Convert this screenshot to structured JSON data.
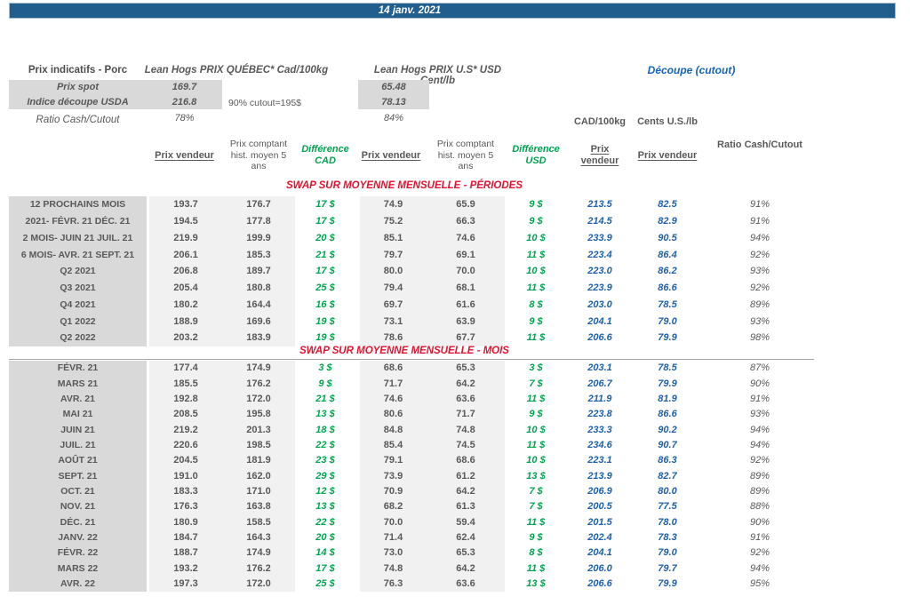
{
  "banner": {
    "date": "14 janv. 2021"
  },
  "header": {
    "title": "Prix indicatifs - Porc",
    "quebec_title": "Lean Hogs PRIX QUÉBEC* Cad/100kg",
    "us_title": "Lean Hogs PRIX U.S* USD Cent/lb",
    "cutout_title": "Découpe (cutout)",
    "spot_label": "Prix spot",
    "spot_cad": "169.7",
    "spot_usd": "65.48",
    "usda_label": "Indice découpe USDA",
    "usda_cad": "216.8",
    "usda_usd": "78.13",
    "cutout_note": "90% cutout=195$",
    "ratio_label": "Ratio Cash/Cutout",
    "ratio_cad": "78%",
    "ratio_usd": "84%",
    "unit_cad": "CAD/100kg",
    "unit_usd": "Cents U.S./lb",
    "ratio_right_label": "Ratio Cash/Cutout"
  },
  "columns": {
    "prix_vendeur": "Prix vendeur",
    "prix_comptant": "Prix comptant hist. moyen 5 ans",
    "difference_cad": "Différence CAD",
    "difference_usd": "Différence USD"
  },
  "colors": {
    "banner_blue": "#215E8E",
    "cutout_blue": "#1663C0",
    "value_blue": "#2061A9",
    "positive_green": "#00A550",
    "section_red": "#E8112D",
    "text_gray": "#595959",
    "label_bg": "#D9D9D9",
    "cell_bg": "#F1F1F1"
  },
  "sections": [
    {
      "title": "SWAP SUR MOYENNE MENSUELLE - PÉRIODES",
      "rows": [
        [
          "12 PROCHAINS MOIS",
          "193.7",
          "176.7",
          "17 $",
          "74.9",
          "65.9",
          "9 $",
          "213.5",
          "82.5",
          "91%"
        ],
        [
          "2021- FÉVR. 21 DÉC. 21",
          "194.5",
          "177.8",
          "17 $",
          "75.2",
          "66.3",
          "9 $",
          "214.5",
          "82.9",
          "91%"
        ],
        [
          "2 MOIS- JUIN 21 JUIL. 21",
          "219.9",
          "199.9",
          "20 $",
          "85.1",
          "74.6",
          "10 $",
          "233.9",
          "90.5",
          "94%"
        ],
        [
          "6 MOIS- AVR. 21 SEPT. 21",
          "206.1",
          "185.3",
          "21 $",
          "79.7",
          "69.1",
          "11 $",
          "223.4",
          "86.4",
          "92%"
        ],
        [
          "Q2 2021",
          "206.8",
          "189.7",
          "17 $",
          "80.0",
          "70.0",
          "10 $",
          "223.0",
          "86.2",
          "93%"
        ],
        [
          "Q3 2021",
          "205.4",
          "180.8",
          "25 $",
          "79.4",
          "68.1",
          "11 $",
          "223.9",
          "86.6",
          "92%"
        ],
        [
          "Q4 2021",
          "180.2",
          "164.4",
          "16 $",
          "69.7",
          "61.6",
          "8 $",
          "203.0",
          "78.5",
          "89%"
        ],
        [
          "Q1 2022",
          "188.9",
          "169.6",
          "19 $",
          "73.1",
          "63.9",
          "9 $",
          "204.1",
          "79.0",
          "93%"
        ],
        [
          "Q2 2022",
          "203.2",
          "183.9",
          "19 $",
          "78.6",
          "67.7",
          "11 $",
          "206.6",
          "79.9",
          "98%"
        ]
      ]
    },
    {
      "title": "SWAP SUR MOYENNE MENSUELLE - MOIS",
      "rows": [
        [
          "FÉVR. 21",
          "177.4",
          "174.9",
          "3 $",
          "68.6",
          "65.3",
          "3 $",
          "203.1",
          "78.5",
          "87%"
        ],
        [
          "MARS 21",
          "185.5",
          "176.2",
          "9 $",
          "71.7",
          "64.2",
          "7 $",
          "206.7",
          "79.9",
          "90%"
        ],
        [
          "AVR. 21",
          "192.8",
          "172.0",
          "21 $",
          "74.6",
          "63.6",
          "11 $",
          "211.9",
          "81.9",
          "91%"
        ],
        [
          "MAI 21",
          "208.5",
          "195.8",
          "13 $",
          "80.6",
          "71.7",
          "9 $",
          "223.8",
          "86.6",
          "93%"
        ],
        [
          "JUIN 21",
          "219.2",
          "201.3",
          "18 $",
          "84.8",
          "74.8",
          "10 $",
          "233.3",
          "90.2",
          "94%"
        ],
        [
          "JUIL. 21",
          "220.6",
          "198.5",
          "22 $",
          "85.4",
          "74.5",
          "11 $",
          "234.6",
          "90.7",
          "94%"
        ],
        [
          "AOÛT 21",
          "204.5",
          "181.9",
          "23 $",
          "79.1",
          "68.6",
          "10 $",
          "223.1",
          "86.3",
          "92%"
        ],
        [
          "SEPT. 21",
          "191.0",
          "162.0",
          "29 $",
          "73.9",
          "61.2",
          "13 $",
          "213.9",
          "82.7",
          "89%"
        ],
        [
          "OCT. 21",
          "183.3",
          "171.0",
          "12 $",
          "70.9",
          "64.2",
          "7 $",
          "206.9",
          "80.0",
          "89%"
        ],
        [
          "NOV. 21",
          "176.3",
          "163.8",
          "13 $",
          "68.2",
          "61.3",
          "7 $",
          "200.5",
          "77.5",
          "88%"
        ],
        [
          "DÉC. 21",
          "180.9",
          "158.5",
          "22 $",
          "70.0",
          "59.4",
          "11 $",
          "201.5",
          "78.0",
          "90%"
        ],
        [
          "JANV. 22",
          "184.7",
          "164.3",
          "20 $",
          "71.4",
          "62.4",
          "9 $",
          "202.4",
          "78.3",
          "91%"
        ],
        [
          "FÉVR. 22",
          "188.7",
          "174.9",
          "14 $",
          "73.0",
          "65.3",
          "8 $",
          "204.1",
          "79.0",
          "92%"
        ],
        [
          "MARS 22",
          "193.2",
          "176.2",
          "17 $",
          "74.8",
          "64.2",
          "11 $",
          "206.0",
          "79.7",
          "94%"
        ],
        [
          "AVR. 22",
          "197.3",
          "172.0",
          "25 $",
          "76.3",
          "63.6",
          "13 $",
          "206.6",
          "79.9",
          "95%"
        ]
      ]
    }
  ]
}
